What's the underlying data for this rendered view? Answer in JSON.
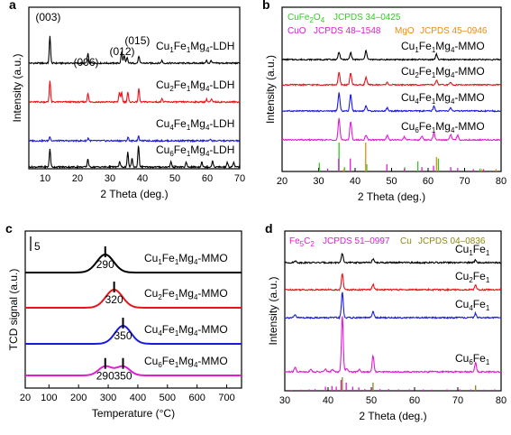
{
  "chart_data": [
    {
      "panel_label": "a",
      "type": "line",
      "xlabel": "2 Theta (deg.)",
      "ylabel": "Intensity (a.u.)",
      "xlim": [
        5,
        70
      ],
      "xticks": [
        10,
        20,
        30,
        40,
        50,
        60,
        70
      ],
      "peak_labels": [
        {
          "text": "(003)",
          "x": 11.5
        },
        {
          "text": "(006)",
          "x": 23.2
        },
        {
          "text": "(012)",
          "x": 34.3
        },
        {
          "text": "(015)",
          "x": 39.0
        }
      ],
      "series": [
        {
          "name": "Cu1Fe1Mg4-LDH",
          "base": "Cu",
          "sub1": "1",
          "mid": "Fe",
          "sub2": "1",
          "tail": "Mg",
          "sub3": "4",
          "suffix": "-LDH",
          "color": "#000000",
          "peaks": [
            [
              11.5,
              30
            ],
            [
              23.2,
              11
            ],
            [
              33.6,
              13
            ],
            [
              34.4,
              9
            ],
            [
              35.3,
              6
            ],
            [
              38.9,
              8
            ],
            [
              46.0,
              3
            ],
            [
              59.8,
              3
            ],
            [
              61.2,
              3
            ]
          ]
        },
        {
          "name": "Cu2Fe1Mg4-LDH",
          "base": "Cu",
          "sub1": "2",
          "mid": "Fe",
          "sub2": "1",
          "tail": "Mg",
          "sub3": "4",
          "suffix": "-LDH",
          "color": "#e8141b",
          "peaks": [
            [
              11.5,
              24
            ],
            [
              23.2,
              10
            ],
            [
              32.9,
              11
            ],
            [
              33.6,
              11
            ],
            [
              35.5,
              11
            ],
            [
              38.9,
              15
            ],
            [
              46.0,
              4
            ],
            [
              59.8,
              3
            ],
            [
              61.3,
              3
            ]
          ]
        },
        {
          "name": "Cu4Fe1Mg4-LDH",
          "base": "Cu",
          "sub1": "4",
          "mid": "Fe",
          "sub2": "1",
          "tail": "Mg",
          "sub3": "4",
          "suffix": "-LDH",
          "color": "#1a1adf",
          "peaks": [
            [
              11.5,
              5
            ],
            [
              23.3,
              3
            ],
            [
              35.6,
              4
            ],
            [
              38.8,
              5
            ],
            [
              61.0,
              2
            ]
          ]
        },
        {
          "name": "Cu6Fe1Mg4-LDH",
          "base": "Cu",
          "sub1": "6",
          "mid": "Fe",
          "sub2": "1",
          "tail": "Mg",
          "sub3": "4",
          "suffix": "-LDH",
          "color": "#000000",
          "peaks": [
            [
              11.5,
              20
            ],
            [
              23.2,
              9
            ],
            [
              33.0,
              6
            ],
            [
              35.5,
              16
            ],
            [
              36.8,
              10
            ],
            [
              38.8,
              24
            ],
            [
              48.8,
              6
            ],
            [
              53.5,
              5
            ],
            [
              58.3,
              6
            ],
            [
              61.6,
              7
            ],
            [
              66.2,
              5
            ],
            [
              68.1,
              5
            ]
          ]
        }
      ]
    },
    {
      "panel_label": "b",
      "type": "line",
      "xlabel": "2 Theta (deg.)",
      "ylabel": "Intensity (a.u.)",
      "xlim": [
        20,
        80
      ],
      "xticks": [
        20,
        30,
        40,
        50,
        60,
        70,
        80
      ],
      "reference_legend": [
        {
          "name": "CuFe2O4",
          "label_base": "CuFe",
          "label_sub1": "2",
          "label_mid": "O",
          "label_sub2": "4",
          "pdf": "JCPDS 34–0425",
          "color": "#34c924"
        },
        {
          "name": "CuO",
          "label_base": "CuO",
          "pdf": "JCPDS 48–1548",
          "color": "#e01bd3"
        },
        {
          "name": "MgO",
          "label_base": "MgO",
          "pdf": "JCPDS 45–0946",
          "color": "#ef8a10"
        }
      ],
      "series": [
        {
          "name": "Cu1Fe1Mg4-MMO",
          "base": "Cu",
          "sub1": "1",
          "mid": "Fe",
          "sub2": "1",
          "tail": "Mg",
          "sub3": "4",
          "suffix": "-MMO",
          "color": "#000000",
          "peaks": [
            [
              35.6,
              10
            ],
            [
              38.8,
              9
            ],
            [
              43.0,
              12
            ],
            [
              62.3,
              7
            ]
          ]
        },
        {
          "name": "Cu2Fe1Mg4-MMO",
          "base": "Cu",
          "sub1": "2",
          "mid": "Fe",
          "sub2": "1",
          "tail": "Mg",
          "sub3": "4",
          "suffix": "-MMO",
          "color": "#e8141b",
          "peaks": [
            [
              35.6,
              16
            ],
            [
              38.8,
              15
            ],
            [
              43.0,
              10
            ],
            [
              48.8,
              3
            ],
            [
              62.3,
              6
            ],
            [
              66.2,
              3
            ]
          ]
        },
        {
          "name": "Cu4Fe1Mg4-MMO",
          "base": "Cu",
          "sub1": "4",
          "mid": "Fe",
          "sub2": "1",
          "tail": "Mg",
          "sub3": "4",
          "suffix": "-MMO",
          "color": "#1a1adf",
          "peaks": [
            [
              35.6,
              24
            ],
            [
              38.8,
              22
            ],
            [
              43.0,
              7
            ],
            [
              48.8,
              4
            ],
            [
              61.6,
              6
            ],
            [
              66.2,
              4
            ]
          ]
        },
        {
          "name": "Cu6Fe1Mg4-MMO",
          "base": "Cu",
          "sub1": "6",
          "mid": "Fe",
          "sub2": "1",
          "tail": "Mg",
          "sub3": "4",
          "suffix": "-MMO",
          "color": "#e01bd3",
          "peaks": [
            [
              35.6,
              28
            ],
            [
              38.8,
              24
            ],
            [
              43.0,
              6
            ],
            [
              48.8,
              6
            ],
            [
              53.5,
              4
            ],
            [
              58.3,
              5
            ],
            [
              61.6,
              9
            ],
            [
              66.2,
              7
            ],
            [
              68.1,
              6
            ]
          ]
        }
      ],
      "reference_sticks": {
        "CuFe2O4": [
          [
            18.4,
            10
          ],
          [
            30.2,
            30
          ],
          [
            35.6,
            100
          ],
          [
            37.1,
            15
          ],
          [
            43.2,
            25
          ],
          [
            53.6,
            15
          ],
          [
            57.2,
            35
          ],
          [
            62.8,
            45
          ],
          [
            74.2,
            10
          ]
        ],
        "CuO": [
          [
            32.5,
            10
          ],
          [
            35.5,
            45
          ],
          [
            38.7,
            45
          ],
          [
            48.7,
            25
          ],
          [
            53.5,
            10
          ],
          [
            58.3,
            15
          ],
          [
            61.5,
            20
          ],
          [
            66.2,
            15
          ],
          [
            68.1,
            12
          ],
          [
            72.4,
            8
          ],
          [
            75.2,
            8
          ]
        ],
        "MgO": [
          [
            36.9,
            8
          ],
          [
            42.9,
            100
          ],
          [
            62.3,
            50
          ],
          [
            74.7,
            8
          ],
          [
            78.6,
            8
          ]
        ]
      }
    },
    {
      "panel_label": "c",
      "type": "line",
      "xlabel": "Temperature (°C)",
      "ylabel": "TCD signal (a.u.)",
      "xlim": [
        20,
        750
      ],
      "xticks": [
        20,
        100,
        200,
        300,
        400,
        500,
        600,
        700
      ],
      "scale_bar": "5",
      "series": [
        {
          "name": "Cu1Fe1Mg4-MMO",
          "base": "Cu",
          "sub1": "1",
          "mid": "Fe",
          "sub2": "1",
          "tail": "Mg",
          "sub3": "4",
          "suffix": "-MMO",
          "color": "#000000",
          "peaks_gauss": [
            [
              290,
              8,
              40
            ]
          ],
          "peak_marks": [
            "290"
          ],
          "peak_mark_x": [
            290
          ]
        },
        {
          "name": "Cu2Fe1Mg4-MMO",
          "base": "Cu",
          "sub1": "2",
          "mid": "Fe",
          "sub2": "1",
          "tail": "Mg",
          "sub3": "4",
          "suffix": "-MMO",
          "color": "#e8141b",
          "peaks_gauss": [
            [
              320,
              8,
              40
            ]
          ],
          "peak_marks": [
            "320"
          ],
          "peak_mark_x": [
            320
          ]
        },
        {
          "name": "Cu4Fe1Mg4-MMO",
          "base": "Cu",
          "sub1": "4",
          "mid": "Fe",
          "sub2": "1",
          "tail": "Mg",
          "sub3": "4",
          "suffix": "-MMO",
          "color": "#1a1adf",
          "peaks_gauss": [
            [
              350,
              8,
              38
            ]
          ],
          "peak_marks": [
            "350"
          ],
          "peak_mark_x": [
            350
          ]
        },
        {
          "name": "Cu6Fe1Mg4-MMO",
          "base": "Cu",
          "sub1": "6",
          "mid": "Fe",
          "sub2": "1",
          "tail": "Mg",
          "sub3": "4",
          "suffix": "-MMO",
          "color": "#e01bd3",
          "peaks_gauss": [
            [
              290,
              4,
              32
            ],
            [
              350,
              4,
              32
            ]
          ],
          "peak_marks": [
            "290",
            "350"
          ],
          "peak_mark_x": [
            290,
            350
          ]
        }
      ]
    },
    {
      "panel_label": "d",
      "type": "line",
      "xlabel": "2 Theta (deg.)",
      "ylabel": "Intensity (a.u.)",
      "xlim": [
        30,
        80
      ],
      "xticks": [
        30,
        40,
        50,
        60,
        70,
        80
      ],
      "reference_legend": [
        {
          "name": "Fe5C2",
          "label_base": "Fe",
          "label_sub1": "5",
          "label_mid": "C",
          "label_sub2": "2",
          "pdf": "JCPDS 51–0997",
          "color": "#e01bd3"
        },
        {
          "name": "Cu",
          "label_base": "Cu",
          "pdf": "JCPDS 04–0836",
          "color": "#8b8a12"
        }
      ],
      "series": [
        {
          "name": "Cu1Fe1",
          "base": "Cu",
          "sub1": "1",
          "mid": "Fe",
          "sub2": "1",
          "color": "#000000",
          "peaks": [
            [
              43.3,
              10
            ],
            [
              50.4,
              4
            ],
            [
              74.1,
              3
            ],
            [
              32.4,
              2
            ]
          ]
        },
        {
          "name": "Cu2Fe1",
          "base": "Cu",
          "sub1": "2",
          "mid": "Fe",
          "sub2": "1",
          "color": "#e8141b",
          "peaks": [
            [
              43.3,
              18
            ],
            [
              50.4,
              6
            ],
            [
              74.1,
              5
            ]
          ]
        },
        {
          "name": "Cu4Fe1",
          "base": "Cu",
          "sub1": "4",
          "mid": "Fe",
          "sub2": "1",
          "color": "#1a1adf",
          "peaks": [
            [
              43.3,
              28
            ],
            [
              50.4,
              7
            ],
            [
              74.1,
              5
            ],
            [
              32.4,
              3
            ]
          ]
        },
        {
          "name": "Cu6Fe1",
          "base": "Cu",
          "sub1": "6",
          "mid": "Fe",
          "sub2": "1",
          "color": "#e01bd3",
          "peaks": [
            [
              43.3,
              62
            ],
            [
              50.4,
              18
            ],
            [
              74.1,
              10
            ],
            [
              32.4,
              5
            ],
            [
              36.0,
              3
            ],
            [
              39.4,
              3
            ],
            [
              41.0,
              3
            ],
            [
              44.3,
              4
            ],
            [
              47.2,
              3
            ]
          ]
        }
      ],
      "reference_sticks": {
        "Fe5C2": [
          [
            31.5,
            5
          ],
          [
            33.8,
            8
          ],
          [
            35.6,
            10
          ],
          [
            37.0,
            12
          ],
          [
            39.4,
            30
          ],
          [
            40.9,
            35
          ],
          [
            41.9,
            30
          ],
          [
            43.0,
            80
          ],
          [
            44.2,
            60
          ],
          [
            45.7,
            30
          ],
          [
            47.1,
            25
          ],
          [
            48.5,
            12
          ],
          [
            50.1,
            20
          ],
          [
            52.0,
            12
          ],
          [
            54.0,
            12
          ],
          [
            56.3,
            10
          ],
          [
            58.8,
            10
          ],
          [
            62.0,
            10
          ],
          [
            64.0,
            8
          ],
          [
            67.5,
            10
          ],
          [
            70.5,
            10
          ],
          [
            73.0,
            10
          ],
          [
            76.1,
            8
          ],
          [
            78.5,
            10
          ]
        ],
        "Cu": [
          [
            43.3,
            100
          ],
          [
            50.4,
            60
          ],
          [
            74.1,
            40
          ]
        ]
      }
    }
  ]
}
